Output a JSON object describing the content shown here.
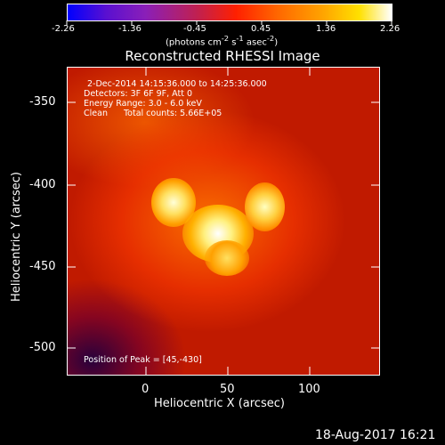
{
  "colorbar": {
    "ticks": [
      "-2.26",
      "-1.36",
      "-0.45",
      "0.45",
      "1.36",
      "2.26"
    ],
    "units_html": "(photons cm<sup>-2</sup> s<sup>-1</sup> asec<sup>-2</sup>)",
    "colors": [
      "#0000ff",
      "#7a1fd6",
      "#d03030",
      "#ff6a00",
      "#ffc000",
      "#ffffff"
    ]
  },
  "title": "Reconstructed RHESSI Image",
  "overlay": {
    "line1": "2-Dec-2014 14:15:36.000 to 14:25:36.000",
    "line2": "Detectors: 3F 6F 9F, Att 0",
    "line3": "Energy Range: 3.0 - 6.0 keV",
    "line4_a": "Clean",
    "line4_b": "Total counts: 5.66E+05",
    "peak": "Position of Peak = [45,-430]"
  },
  "axes": {
    "x_label": "Heliocentric X (arcsec)",
    "y_label": "Heliocentric Y (arcsec)",
    "x_ticks": [
      "0",
      "50",
      "100"
    ],
    "y_ticks": [
      "-350",
      "-400",
      "-450",
      "-500"
    ]
  },
  "footer_date": "18-Aug-2017 16:21"
}
